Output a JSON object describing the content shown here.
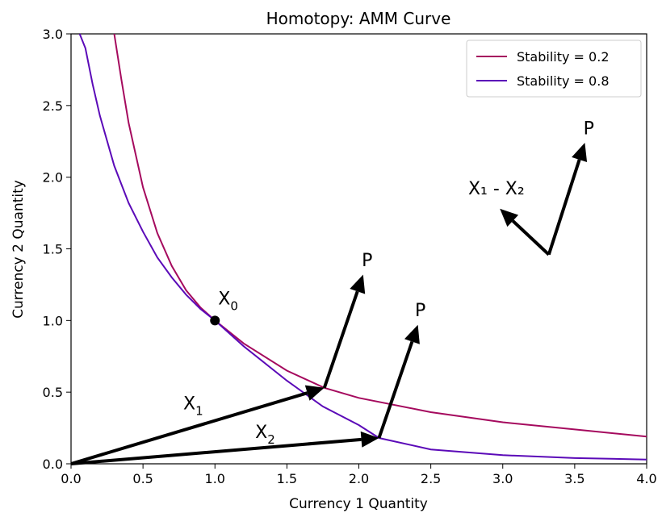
{
  "chart_data": {
    "type": "line",
    "title": "Homotopy: AMM Curve",
    "xlabel": "Currency 1 Quantity",
    "ylabel": "Currency 2 Quantity",
    "xlim": [
      0,
      4
    ],
    "ylim": [
      0,
      3
    ],
    "xticks": [
      "0.0",
      "0.5",
      "1.0",
      "1.5",
      "2.0",
      "2.5",
      "3.0",
      "3.5",
      "4.0"
    ],
    "yticks": [
      "0.0",
      "0.5",
      "1.0",
      "1.5",
      "2.0",
      "2.5",
      "3.0"
    ],
    "legend_position": "top-right",
    "grid": false,
    "series": [
      {
        "name": "Stability = 0.2",
        "color": "#a50a5e",
        "x": [
          0.3,
          0.35,
          0.4,
          0.5,
          0.6,
          0.7,
          0.8,
          0.9,
          1.0,
          1.2,
          1.5,
          1.76,
          2.0,
          2.5,
          3.0,
          3.5,
          4.0
        ],
        "y": [
          3.0,
          2.68,
          2.38,
          1.93,
          1.61,
          1.38,
          1.21,
          1.09,
          1.0,
          0.84,
          0.65,
          0.53,
          0.46,
          0.36,
          0.29,
          0.24,
          0.19
        ]
      },
      {
        "name": "Stability = 0.8",
        "color": "#5b0ab8",
        "x": [
          0.06,
          0.1,
          0.15,
          0.2,
          0.3,
          0.4,
          0.5,
          0.6,
          0.7,
          0.8,
          0.9,
          1.0,
          1.2,
          1.5,
          1.75,
          2.0,
          2.14,
          2.5,
          3.0,
          3.5,
          4.0
        ],
        "y": [
          3.0,
          2.9,
          2.65,
          2.43,
          2.08,
          1.82,
          1.62,
          1.44,
          1.3,
          1.18,
          1.08,
          1.0,
          0.82,
          0.58,
          0.4,
          0.27,
          0.18,
          0.1,
          0.06,
          0.04,
          0.03
        ]
      }
    ],
    "points": [
      {
        "label": "X",
        "sub": "0",
        "x": 1.0,
        "y": 1.0
      }
    ],
    "arrows": [
      {
        "from": [
          0,
          0
        ],
        "to": [
          1.76,
          0.53
        ],
        "label": "X",
        "sub": "1",
        "label_at": [
          0.78,
          0.38
        ]
      },
      {
        "from": [
          0,
          0
        ],
        "to": [
          2.14,
          0.18
        ],
        "label": "X",
        "sub": "2",
        "label_at": [
          1.28,
          0.18
        ]
      },
      {
        "from": [
          1.76,
          0.53
        ],
        "to": [
          2.03,
          1.32
        ],
        "label": "P",
        "sub": "",
        "label_at": [
          2.02,
          1.38
        ]
      },
      {
        "from": [
          2.14,
          0.18
        ],
        "to": [
          2.41,
          0.97
        ],
        "label": "P",
        "sub": "",
        "label_at": [
          2.39,
          1.03
        ]
      },
      {
        "from": [
          3.32,
          1.46
        ],
        "to": [
          3.57,
          2.24
        ],
        "label": "P",
        "sub": "",
        "label_at": [
          3.56,
          2.3
        ]
      },
      {
        "from": [
          3.32,
          1.46
        ],
        "to": [
          2.98,
          1.78
        ],
        "label": "X₁ - X₂",
        "sub": "",
        "label_at": [
          2.76,
          1.88
        ]
      }
    ]
  }
}
